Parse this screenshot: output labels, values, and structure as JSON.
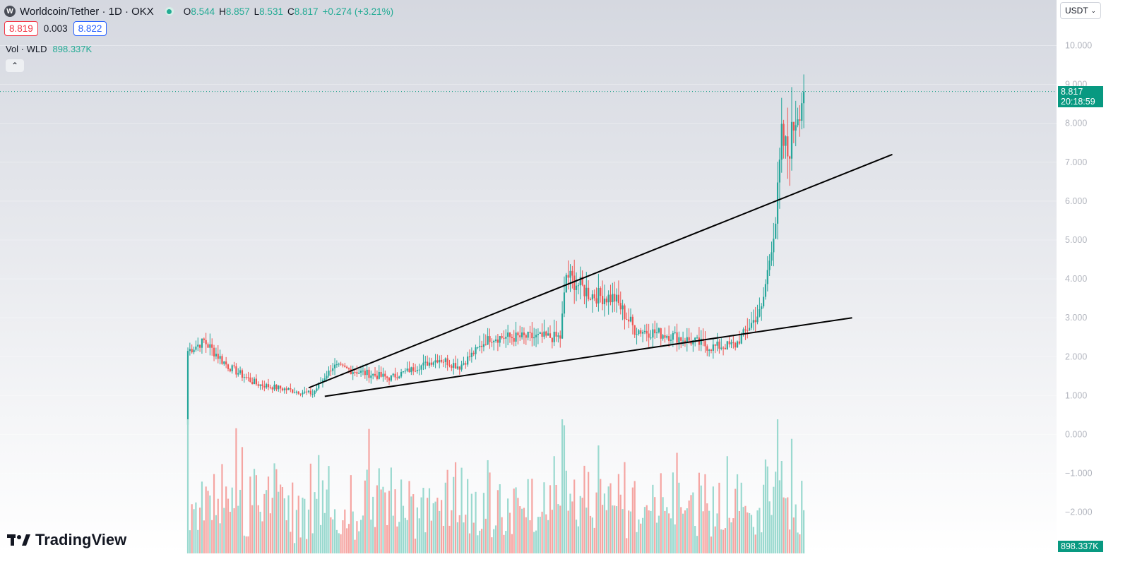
{
  "header": {
    "symbol_icon_letter": "W",
    "title": "Worldcoin/Tether · 1D · OKX",
    "ohlc": [
      {
        "k": "O",
        "v": "8.544"
      },
      {
        "k": "H",
        "v": "8.857"
      },
      {
        "k": "L",
        "v": "8.531"
      },
      {
        "k": "C",
        "v": "8.817"
      },
      {
        "k": "",
        "v": "+0.274 (+3.21%)"
      }
    ]
  },
  "trade": {
    "sell": "8.819",
    "spread": "0.003",
    "buy": "8.822"
  },
  "volume_legend": {
    "label": "Vol · WLD",
    "value": "898.337K"
  },
  "currency": {
    "label": "USDT",
    "icon": "chevron-down-icon"
  },
  "price_scale": {
    "ticks": [
      "10.000",
      "9.000",
      "8.000",
      "7.000",
      "6.000",
      "5.000",
      "4.000",
      "3.000",
      "2.000",
      "1.000",
      "0.000",
      "−1.000",
      "−2.000"
    ],
    "last_price": "8.817",
    "countdown": "20:18:59",
    "volume_tag": "898.337K"
  },
  "branding": {
    "name": "TradingView",
    "icon": "tradingview-logo-icon"
  },
  "colors": {
    "up": "#26a69a",
    "down": "#ef5350",
    "tag": "#089981",
    "vol_up": "#9ad9cf",
    "vol_down": "#f5a5a2"
  },
  "chart_data": {
    "type": "candlestick",
    "symbol": "Worldcoin/Tether",
    "interval": "1D",
    "exchange": "OKX",
    "ylim": [
      -2.5,
      10.3
    ],
    "last_close": 8.817,
    "candles_keypoints": [
      {
        "i": 0,
        "close": 2.15
      },
      {
        "i": 8,
        "close": 2.4
      },
      {
        "i": 20,
        "close": 1.75
      },
      {
        "i": 34,
        "close": 1.3
      },
      {
        "i": 55,
        "close": 1.1
      },
      {
        "i": 62,
        "close": 1.05
      },
      {
        "i": 72,
        "close": 1.75
      },
      {
        "i": 100,
        "close": 1.45
      },
      {
        "i": 125,
        "close": 1.95
      },
      {
        "i": 135,
        "close": 1.75
      },
      {
        "i": 150,
        "close": 2.5
      },
      {
        "i": 170,
        "close": 2.5
      },
      {
        "i": 185,
        "close": 2.5
      },
      {
        "i": 188,
        "close": 4.1
      },
      {
        "i": 200,
        "close": 3.6
      },
      {
        "i": 212,
        "close": 3.5
      },
      {
        "i": 222,
        "close": 2.7
      },
      {
        "i": 240,
        "close": 2.55
      },
      {
        "i": 260,
        "close": 2.25
      },
      {
        "i": 272,
        "close": 2.3
      },
      {
        "i": 285,
        "close": 3.2
      },
      {
        "i": 292,
        "close": 5.5
      },
      {
        "i": 295,
        "close": 7.6
      },
      {
        "i": 298,
        "close": 7.2
      },
      {
        "i": 302,
        "close": 8.2
      },
      {
        "i": 306,
        "close": 8.817
      }
    ],
    "trendlines": [
      {
        "name": "upper",
        "from": {
          "i": 60,
          "y": 1.2
        },
        "to": {
          "i": 350,
          "y": 7.2
        }
      },
      {
        "name": "lower",
        "from": {
          "i": 68,
          "y": 0.98
        },
        "to": {
          "i": 330,
          "y": 3.0
        }
      }
    ]
  }
}
